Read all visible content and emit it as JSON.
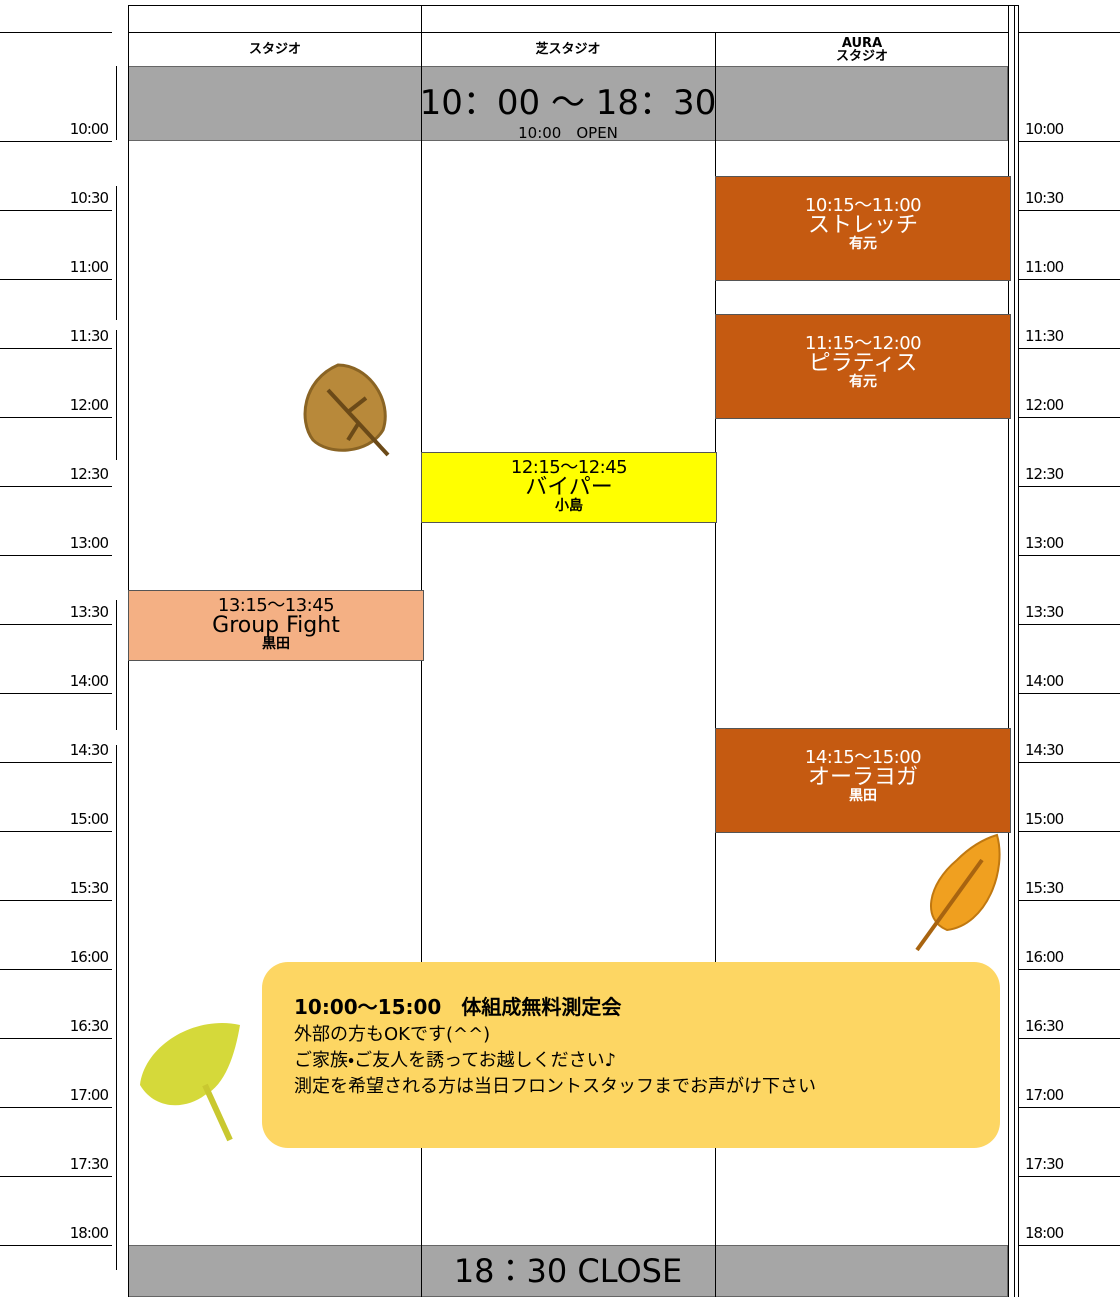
{
  "banner": {
    "hours": "10：00 ～ 18：30",
    "open": "10:00　OPEN",
    "close": "18：30 CLOSE"
  },
  "times": [
    "10:00",
    "10:30",
    "11:00",
    "11:30",
    "12:00",
    "12:30",
    "13:00",
    "13:30",
    "14:00",
    "14:30",
    "15:00",
    "15:30",
    "16:00",
    "16:30",
    "17:00",
    "17:30",
    "18:00"
  ],
  "columns": [
    {
      "header": [
        "スタジオ"
      ],
      "classes": [
        {
          "time": "13:15～13:45",
          "name": "Group Fight",
          "instructor": "黒田",
          "color": "#f4b084",
          "text_color": "#000000"
        }
      ]
    },
    {
      "header": [
        "芝スタジオ"
      ],
      "classes": [
        {
          "time": "12:15～12:45",
          "name": "バイパー",
          "instructor": "小島",
          "color": "#ffff00",
          "text_color": "#000000"
        }
      ]
    },
    {
      "header": [
        "AURA",
        "スタジオ"
      ],
      "classes": [
        {
          "time": "10:15～11:00",
          "name": "ストレッチ",
          "instructor": "有元",
          "color": "#c55a11",
          "text_color": "#ffffff"
        },
        {
          "time": "11:15～12:00",
          "name": "ピラティス",
          "instructor": "有元",
          "color": "#c55a11",
          "text_color": "#ffffff"
        },
        {
          "time": "14:15～15:00",
          "name": "オーラヨガ",
          "instructor": "黒田",
          "color": "#c55a11",
          "text_color": "#ffffff"
        }
      ]
    }
  ],
  "notice": {
    "title": "10:00～15:00　体組成無料測定会",
    "lines": [
      "外部の方もOKです(^^)",
      "ご家族・ご友人を誘ってお越しください♪",
      "測定を希望される方は当日フロントスタッフまでお声がけ下さい"
    ]
  }
}
